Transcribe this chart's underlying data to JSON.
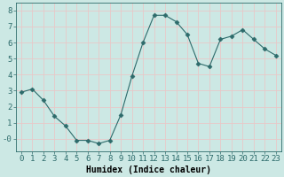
{
  "x": [
    0,
    1,
    2,
    3,
    4,
    5,
    6,
    7,
    8,
    9,
    10,
    11,
    12,
    13,
    14,
    15,
    16,
    17,
    18,
    19,
    20,
    21,
    22,
    23
  ],
  "y": [
    2.9,
    3.1,
    2.4,
    1.4,
    0.8,
    -0.1,
    -0.1,
    -0.3,
    -0.1,
    1.5,
    3.9,
    6.0,
    7.7,
    7.7,
    7.3,
    6.5,
    4.7,
    4.5,
    6.2,
    6.4,
    6.8,
    6.2,
    5.6,
    5.2
  ],
  "line_color": "#2d6b6b",
  "marker": "D",
  "marker_size": 2.5,
  "bg_color": "#cce8e4",
  "grid_color": "#e8c8c8",
  "xlabel": "Humidex (Indice chaleur)",
  "xlim": [
    -0.5,
    23.5
  ],
  "ylim": [
    -0.8,
    8.5
  ],
  "yticks": [
    0,
    1,
    2,
    3,
    4,
    5,
    6,
    7,
    8
  ],
  "ytick_labels": [
    "-0",
    "1",
    "2",
    "3",
    "4",
    "5",
    "6",
    "7",
    "8"
  ],
  "xtick_labels": [
    "0",
    "1",
    "2",
    "3",
    "4",
    "5",
    "6",
    "7",
    "8",
    "9",
    "10",
    "11",
    "12",
    "13",
    "14",
    "15",
    "16",
    "17",
    "18",
    "19",
    "20",
    "21",
    "22",
    "23"
  ],
  "xlabel_fontsize": 7,
  "tick_fontsize": 6.5
}
